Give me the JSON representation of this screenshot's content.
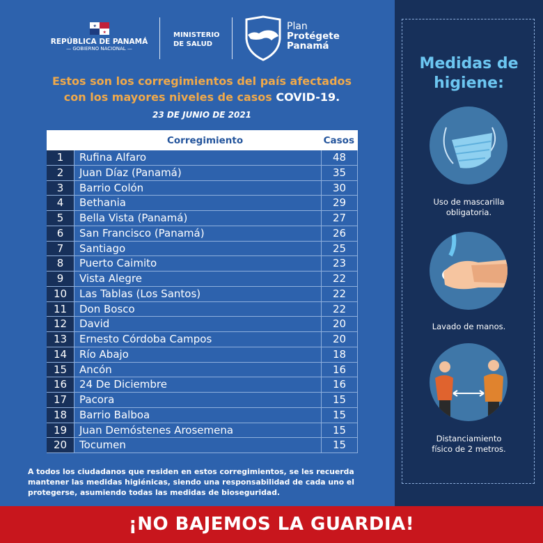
{
  "header": {
    "republica": "REPÚBLICA DE PANAMÁ",
    "gobierno": "— GOBIERNO NACIONAL —",
    "ministerio_line1": "MINISTERIO",
    "ministerio_line2": "DE SALUD",
    "plan_line1": "Plan",
    "plan_line2": "Protégete",
    "plan_line3": "Panamá"
  },
  "title": {
    "line1": "Estos son los corregimientos del país afectados",
    "line2": "con los mayores niveles de casos ",
    "highlight": "COVID-19.",
    "date": "23  DE JUNIO DE 2021"
  },
  "table": {
    "headers": {
      "corregimiento": "Corregimiento",
      "casos": "Casos"
    },
    "rows": [
      {
        "n": "1",
        "name": "Rufina Alfaro",
        "cases": "48"
      },
      {
        "n": "2",
        "name": "Juan Díaz (Panamá)",
        "cases": "35"
      },
      {
        "n": "3",
        "name": "Barrio Colón",
        "cases": "30"
      },
      {
        "n": "4",
        "name": "Bethania",
        "cases": "29"
      },
      {
        "n": "5",
        "name": "Bella Vista (Panamá)",
        "cases": "27"
      },
      {
        "n": "6",
        "name": "San Francisco (Panamá)",
        "cases": "26"
      },
      {
        "n": "7",
        "name": "Santiago",
        "cases": "25"
      },
      {
        "n": "8",
        "name": "Puerto Caimito",
        "cases": "23"
      },
      {
        "n": "9",
        "name": "Vista Alegre",
        "cases": "22"
      },
      {
        "n": "10",
        "name": "Las Tablas (Los Santos)",
        "cases": "22"
      },
      {
        "n": "11",
        "name": "Don Bosco",
        "cases": "22"
      },
      {
        "n": "12",
        "name": "David",
        "cases": "20"
      },
      {
        "n": "13",
        "name": "Ernesto Córdoba Campos",
        "cases": "20"
      },
      {
        "n": "14",
        "name": "Río Abajo",
        "cases": "18"
      },
      {
        "n": "15",
        "name": "Ancón",
        "cases": "16"
      },
      {
        "n": "16",
        "name": "24 De Diciembre",
        "cases": "16"
      },
      {
        "n": "17",
        "name": "Pacora",
        "cases": "15"
      },
      {
        "n": "18",
        "name": "Barrio Balboa",
        "cases": "15"
      },
      {
        "n": "19",
        "name": "Juan Demóstenes Arosemena",
        "cases": "15"
      },
      {
        "n": "20",
        "name": "Tocumen",
        "cases": "15"
      }
    ]
  },
  "note": "A todos los ciudadanos que residen en estos corregimientos, se les recuerda mantener las medidas higiénicas, siendo una responsabilidad de cada uno el protegerse, asumiendo todas  las medidas de bioseguridad.",
  "panel": {
    "title_line1": "Medidas de",
    "title_line2": "higiene:",
    "items": [
      {
        "icon": "face-mask-icon",
        "line1": "Uso de mascarilla",
        "line2": "obligatoria."
      },
      {
        "icon": "hand-washing-icon",
        "line1": "Lavado de manos.",
        "line2": ""
      },
      {
        "icon": "social-distancing-icon",
        "line1": "Distanciamiento",
        "line2": "físico de 2 metros."
      }
    ]
  },
  "banner": "¡NO BAJEMOS LA GUARDIA!",
  "colors": {
    "background": "#2d62ad",
    "panel": "#17305a",
    "title": "#f0a94a",
    "panel_title": "#6cc6f1",
    "banner": "#c8161d"
  }
}
